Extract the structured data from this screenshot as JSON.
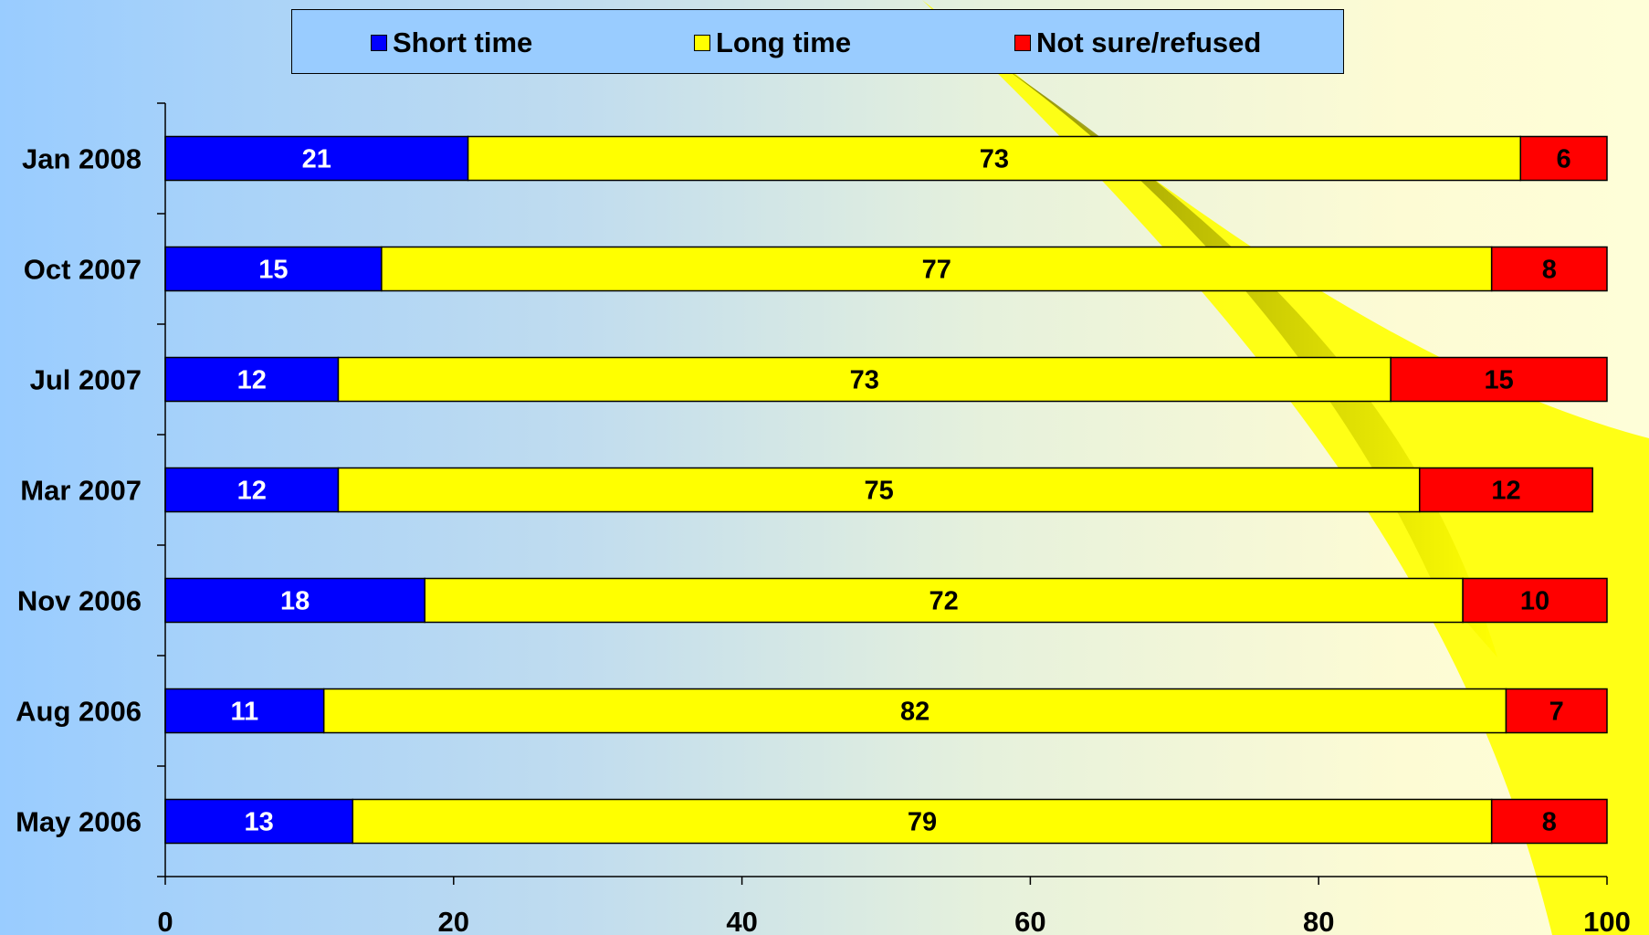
{
  "colors": {
    "short": "#0000ff",
    "long": "#ffff00",
    "notsure": "#ff0000",
    "legend_bg": "#99ccff"
  },
  "legend": {
    "items": [
      {
        "label": "Short time",
        "color_key": "short"
      },
      {
        "label": "Long time",
        "color_key": "long"
      },
      {
        "label": "Not sure/refused",
        "color_key": "notsure"
      }
    ]
  },
  "chart_data": {
    "type": "bar",
    "orientation": "horizontal",
    "stacked": true,
    "categories": [
      "Jan 2008",
      "Oct 2007",
      "Jul 2007",
      "Mar 2007",
      "Nov 2006",
      "Aug 2006",
      "May 2006"
    ],
    "series": [
      {
        "name": "Short time",
        "values": [
          21,
          15,
          12,
          12,
          18,
          11,
          13
        ]
      },
      {
        "name": "Long time",
        "values": [
          73,
          77,
          73,
          75,
          72,
          82,
          79
        ]
      },
      {
        "name": "Not sure/refused",
        "values": [
          6,
          8,
          15,
          12,
          10,
          7,
          8
        ]
      }
    ],
    "xlim": [
      0,
      100
    ],
    "xticks": [
      "0",
      "20",
      "40",
      "60",
      "80",
      "100"
    ],
    "grid": false,
    "legend_position": "top"
  }
}
